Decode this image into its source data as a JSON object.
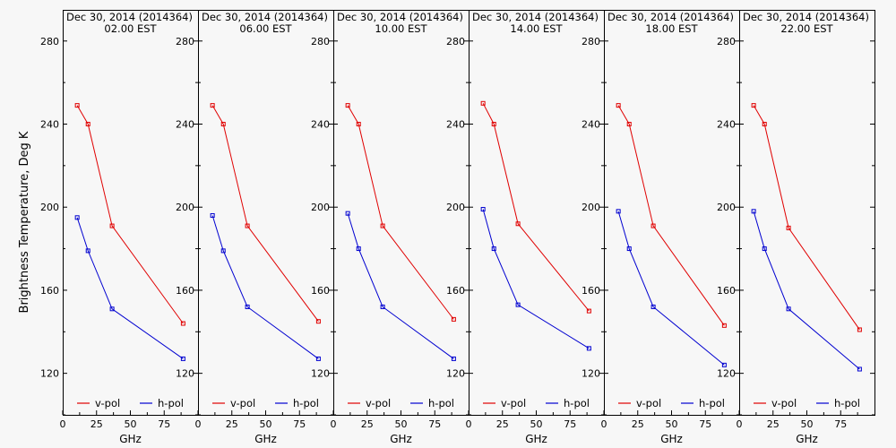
{
  "ylabel": "Brightness Temperature, Deg K",
  "colors": {
    "vpol": "#e00000",
    "hpol": "#0000d0",
    "axis": "#000000"
  },
  "chart_data": [
    {
      "type": "line",
      "title": "Dec 30, 2014 (2014364)",
      "subtitle": "02.00 EST",
      "xlabel": "GHz",
      "ylabel": "Brightness Temperature, Deg K",
      "x": [
        10.7,
        18.7,
        36.5,
        89.0
      ],
      "xlim": [
        0,
        100
      ],
      "ylim": [
        100,
        295
      ],
      "xticks": [
        "0",
        "25",
        "50",
        "75"
      ],
      "yticks": [
        "120",
        "160",
        "200",
        "240",
        "280"
      ],
      "legend": "bottom",
      "series": [
        {
          "name": "v-pol",
          "values": [
            249,
            240,
            191,
            144
          ]
        },
        {
          "name": "h-pol",
          "values": [
            195,
            179,
            151,
            127
          ]
        }
      ]
    },
    {
      "type": "line",
      "title": "Dec 30, 2014 (2014364)",
      "subtitle": "06.00 EST",
      "xlabel": "GHz",
      "x": [
        10.7,
        18.7,
        36.5,
        89.0
      ],
      "xlim": [
        0,
        100
      ],
      "ylim": [
        100,
        295
      ],
      "xticks": [
        "0",
        "25",
        "50",
        "75"
      ],
      "yticks": [
        "120",
        "160",
        "200",
        "240",
        "280"
      ],
      "legend": "bottom",
      "series": [
        {
          "name": "v-pol",
          "values": [
            249,
            240,
            191,
            145
          ]
        },
        {
          "name": "h-pol",
          "values": [
            196,
            179,
            152,
            127
          ]
        }
      ]
    },
    {
      "type": "line",
      "title": "Dec 30, 2014 (2014364)",
      "subtitle": "10.00 EST",
      "xlabel": "GHz",
      "x": [
        10.7,
        18.7,
        36.5,
        89.0
      ],
      "xlim": [
        0,
        100
      ],
      "ylim": [
        100,
        295
      ],
      "xticks": [
        "0",
        "25",
        "50",
        "75"
      ],
      "yticks": [
        "120",
        "160",
        "200",
        "240",
        "280"
      ],
      "legend": "bottom",
      "series": [
        {
          "name": "v-pol",
          "values": [
            249,
            240,
            191,
            146
          ]
        },
        {
          "name": "h-pol",
          "values": [
            197,
            180,
            152,
            127
          ]
        }
      ]
    },
    {
      "type": "line",
      "title": "Dec 30, 2014 (2014364)",
      "subtitle": "14.00 EST",
      "xlabel": "GHz",
      "x": [
        10.7,
        18.7,
        36.5,
        89.0
      ],
      "xlim": [
        0,
        100
      ],
      "ylim": [
        100,
        295
      ],
      "xticks": [
        "0",
        "25",
        "50",
        "75"
      ],
      "yticks": [
        "120",
        "160",
        "200",
        "240",
        "280"
      ],
      "legend": "bottom",
      "series": [
        {
          "name": "v-pol",
          "values": [
            250,
            240,
            192,
            150
          ]
        },
        {
          "name": "h-pol",
          "values": [
            199,
            180,
            153,
            132
          ]
        }
      ]
    },
    {
      "type": "line",
      "title": "Dec 30, 2014 (2014364)",
      "subtitle": "18.00 EST",
      "xlabel": "GHz",
      "x": [
        10.7,
        18.7,
        36.5,
        89.0
      ],
      "xlim": [
        0,
        100
      ],
      "ylim": [
        100,
        295
      ],
      "xticks": [
        "0",
        "25",
        "50",
        "75"
      ],
      "yticks": [
        "120",
        "160",
        "200",
        "240",
        "280"
      ],
      "legend": "bottom",
      "series": [
        {
          "name": "v-pol",
          "values": [
            249,
            240,
            191,
            143
          ]
        },
        {
          "name": "h-pol",
          "values": [
            198,
            180,
            152,
            124
          ]
        }
      ]
    },
    {
      "type": "line",
      "title": "Dec 30, 2014 (2014364)",
      "subtitle": "22.00 EST",
      "xlabel": "GHz",
      "x": [
        10.7,
        18.7,
        36.5,
        89.0
      ],
      "xlim": [
        0,
        100
      ],
      "ylim": [
        100,
        295
      ],
      "xticks": [
        "0",
        "25",
        "50",
        "75"
      ],
      "yticks": [
        "120",
        "160",
        "200",
        "240",
        "280"
      ],
      "legend": "bottom",
      "series": [
        {
          "name": "v-pol",
          "values": [
            249,
            240,
            190,
            141
          ]
        },
        {
          "name": "h-pol",
          "values": [
            198,
            180,
            151,
            122
          ]
        }
      ]
    }
  ]
}
